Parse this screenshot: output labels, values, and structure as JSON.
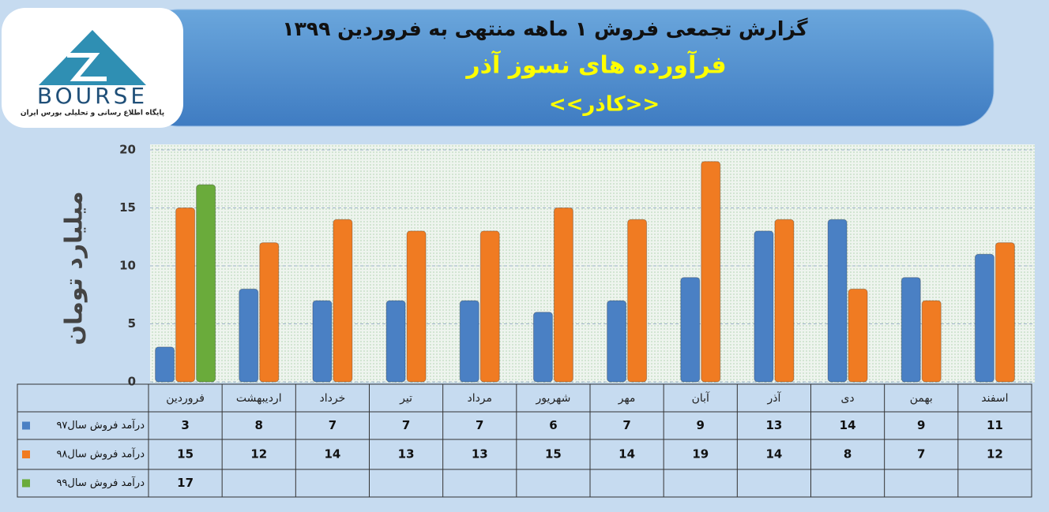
{
  "logo": {
    "text": "BOURSE",
    "tagline": "پایگاه اطلاع رسانی و تحلیلی بورس ایران"
  },
  "chart_data": {
    "type": "bar",
    "title": "گزارش تجمعی فروش  ۱ ماهه منتهی به فروردین ۱۳۹۹",
    "subtitle": "فرآورده های نسوز آذر",
    "annotations": [
      "<<کاذر>>"
    ],
    "ylabel": "میلیارد تومان",
    "categories": [
      "فروردین",
      "اردیبهشت",
      "خرداد",
      "تیر",
      "مرداد",
      "شهریور",
      "مهر",
      "آبان",
      "آذر",
      "دی",
      "بهمن",
      "اسفند"
    ],
    "series": [
      {
        "name": "درآمد فروش سال۹۷",
        "color": "#4a80c4",
        "values": [
          3,
          8,
          7,
          7,
          7,
          6,
          7,
          9,
          13,
          14,
          9,
          11
        ]
      },
      {
        "name": "درآمد فروش سال۹۸",
        "color": "#f07b22",
        "values": [
          15,
          12,
          14,
          13,
          13,
          15,
          14,
          19,
          14,
          8,
          7,
          12
        ]
      },
      {
        "name": "درآمد فروش سال۹۹",
        "color": "#6aab3b",
        "values": [
          17,
          null,
          null,
          null,
          null,
          null,
          null,
          null,
          null,
          null,
          null,
          null
        ]
      }
    ],
    "ylim": [
      0,
      20
    ],
    "yticks": [
      0,
      5,
      10,
      15,
      20
    ],
    "grid": true
  }
}
